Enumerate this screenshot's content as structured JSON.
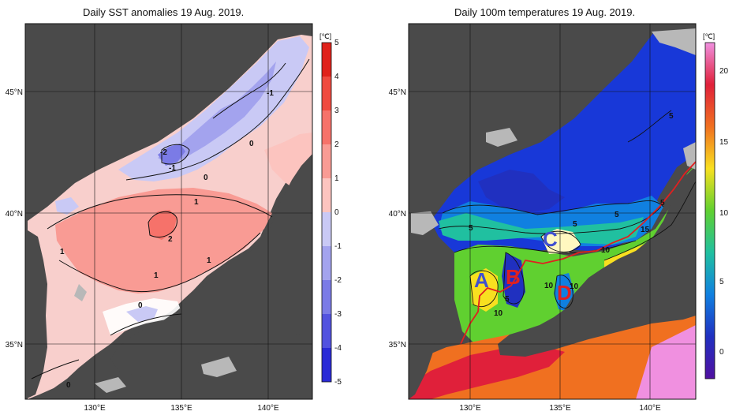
{
  "left_panel": {
    "title": "Daily SST anomalies 19 Aug. 2019.",
    "unit": "[℃]",
    "colorbar_ticks": [
      "5",
      "4",
      "3",
      "2",
      "1",
      "0",
      "-1",
      "-2",
      "-3",
      "-4",
      "-5"
    ],
    "colorbar_colors": [
      "#e0221b",
      "#ef4a3f",
      "#f6726a",
      "#f99b94",
      "#fcc4bf",
      "#ffffff",
      "#c9c9f5",
      "#a3a3ee",
      "#7b7be6",
      "#5252df",
      "#2a2ad6"
    ],
    "lat_labels": [
      "45°N",
      "40°N",
      "35°N"
    ],
    "lon_labels": [
      "130°E",
      "135°E",
      "140°E"
    ],
    "contour_labels": [
      "-1",
      "-2",
      "-1",
      "0",
      "0",
      "1",
      "1",
      "2",
      "1",
      "1",
      "0",
      "0"
    ]
  },
  "right_panel": {
    "title": "Daily 100m temperatures 19 Aug. 2019.",
    "unit": "[℃]",
    "colorbar_ticks": [
      "20",
      "15",
      "10",
      "5",
      "0"
    ],
    "colorbar_colors": [
      "#f090e0",
      "#e0203a",
      "#f07020",
      "#f8e020",
      "#60d030",
      "#20c0a0",
      "#1080e0",
      "#2030c0",
      "#5010a0"
    ],
    "lat_labels": [
      "45°N",
      "40°N",
      "35°N"
    ],
    "lon_labels": [
      "130°E",
      "135°E",
      "140°E"
    ],
    "contour_labels": [
      "5",
      "5",
      "5",
      "5",
      "15",
      "10",
      "10",
      "5",
      "10",
      "10",
      "5"
    ],
    "region_labels": [
      {
        "text": "A",
        "color": "#4050d0"
      },
      {
        "text": "B",
        "color": "#e02020"
      },
      {
        "text": "C",
        "color": "#4050d0"
      },
      {
        "text": "D",
        "color": "#e02020"
      }
    ]
  }
}
